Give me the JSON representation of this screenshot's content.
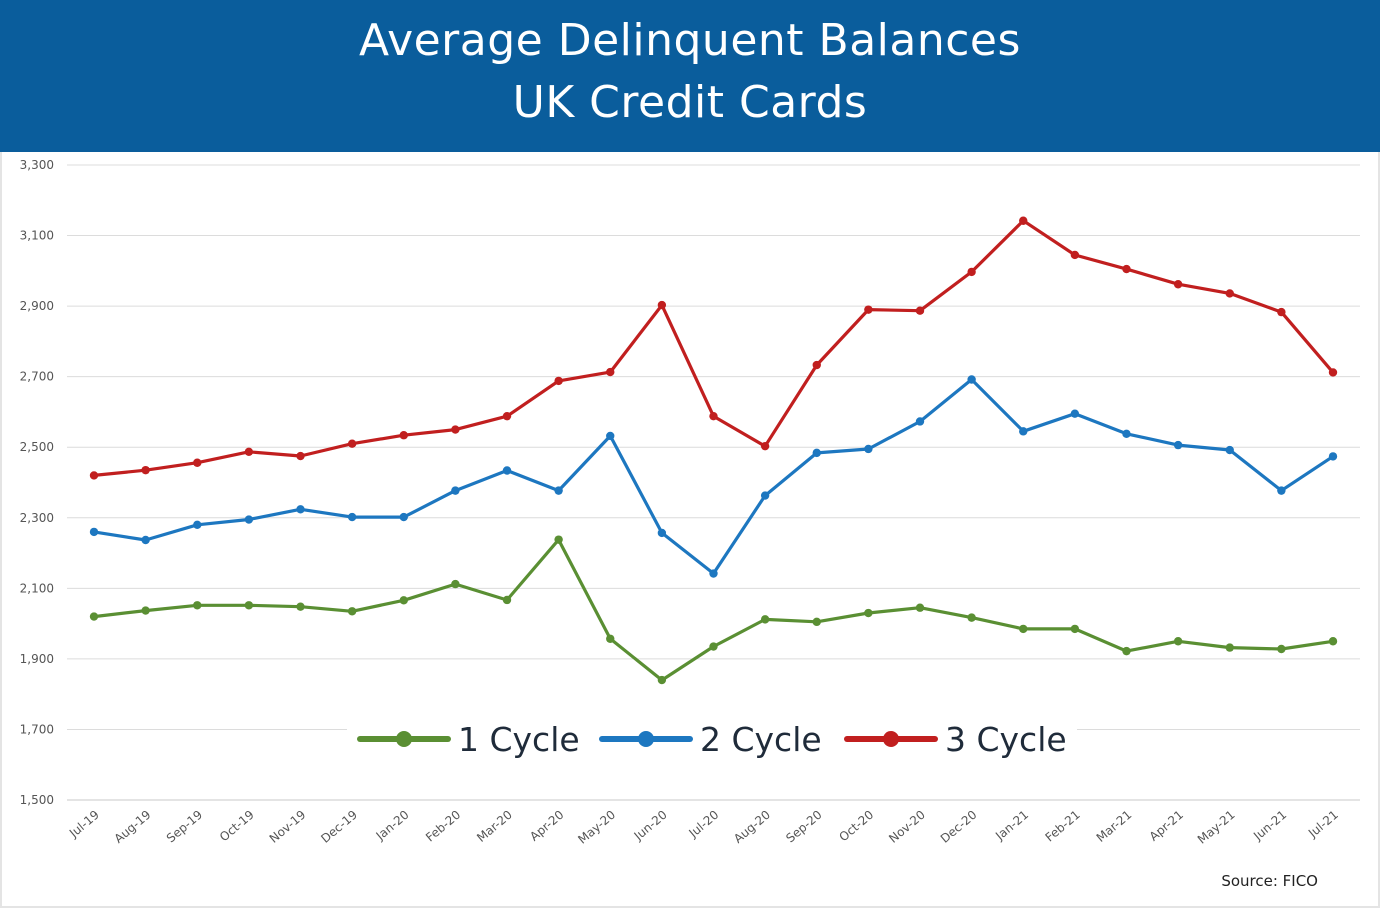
{
  "header": {
    "title_line1": "Average Delinquent Balances",
    "title_line2": "UK Credit Cards",
    "background_color": "#0a5d9c"
  },
  "footer": {
    "source": "Source: FICO"
  },
  "chart_data": {
    "type": "line",
    "title": "Average Delinquent Balances UK Credit Cards",
    "xlabel": "",
    "ylabel": "",
    "ylim": [
      1500,
      3300
    ],
    "yticks": [
      1500,
      1700,
      1900,
      2100,
      2300,
      2500,
      2700,
      2900,
      3100,
      3300
    ],
    "ytick_labels": [
      "1,500",
      "1,700",
      "1,900",
      "2,100",
      "2,300",
      "2,500",
      "2,700",
      "2,900",
      "3,100",
      "3,300"
    ],
    "grid": true,
    "legend_position": "bottom-center inside plot",
    "categories": [
      "Jul-19",
      "Aug-19",
      "Sep-19",
      "Oct-19",
      "Nov-19",
      "Dec-19",
      "Jan-20",
      "Feb-20",
      "Mar-20",
      "Apr-20",
      "May-20",
      "Jun-20",
      "Jul-20",
      "Aug-20",
      "Sep-20",
      "Oct-20",
      "Nov-20",
      "Dec-20",
      "Jan-21",
      "Feb-21",
      "Mar-21",
      "Apr-21",
      "May-21",
      "Jun-21",
      "Jul-21"
    ],
    "series": [
      {
        "name": "1 Cycle",
        "color": "#5a8f33",
        "values": [
          2020,
          2037,
          2052,
          2052,
          2048,
          2035,
          2066,
          2112,
          2067,
          2238,
          1957,
          1840,
          1935,
          2012,
          2005,
          2030,
          2045,
          2017,
          1985,
          1985,
          1922,
          1950,
          1932,
          1928,
          1950
        ]
      },
      {
        "name": "2 Cycle",
        "color": "#1d77c0",
        "values": [
          2260,
          2237,
          2280,
          2295,
          2324,
          2302,
          2302,
          2377,
          2434,
          2377,
          2532,
          2257,
          2142,
          2363,
          2484,
          2495,
          2573,
          2692,
          2545,
          2595,
          2538,
          2506,
          2492,
          2377,
          2474
        ]
      },
      {
        "name": "3 Cycle",
        "color": "#c11f1f",
        "values": [
          2420,
          2435,
          2456,
          2487,
          2475,
          2510,
          2534,
          2550,
          2588,
          2688,
          2713,
          2903,
          2588,
          2503,
          2733,
          2890,
          2887,
          2997,
          3142,
          3045,
          3005,
          2962,
          2936,
          2883,
          2712
        ]
      }
    ]
  }
}
